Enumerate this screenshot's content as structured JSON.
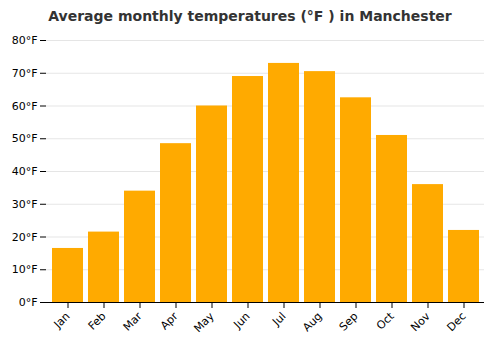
{
  "chart_data": {
    "type": "bar",
    "title": "Average monthly temperatures (°F ) in Manchester",
    "categories": [
      "Jan",
      "Feb",
      "Mar",
      "Apr",
      "May",
      "Jun",
      "Jul",
      "Aug",
      "Sep",
      "Oct",
      "Nov",
      "Dec"
    ],
    "values": [
      16.5,
      21.5,
      34.0,
      48.5,
      60.0,
      69.0,
      73.0,
      70.5,
      62.5,
      51.0,
      36.0,
      22.0
    ],
    "color": "#FFAA00",
    "ylim": [
      0,
      80
    ],
    "yticks": [
      {
        "value": 0,
        "label": "0°F"
      },
      {
        "value": 10,
        "label": "10°F"
      },
      {
        "value": 20,
        "label": "20°F"
      },
      {
        "value": 30,
        "label": "30°F"
      },
      {
        "value": 40,
        "label": "40°F"
      },
      {
        "value": 50,
        "label": "50°F"
      },
      {
        "value": 60,
        "label": "60°F"
      },
      {
        "value": 70,
        "label": "70°F"
      },
      {
        "value": 80,
        "label": "80°F"
      }
    ],
    "grid": true
  }
}
